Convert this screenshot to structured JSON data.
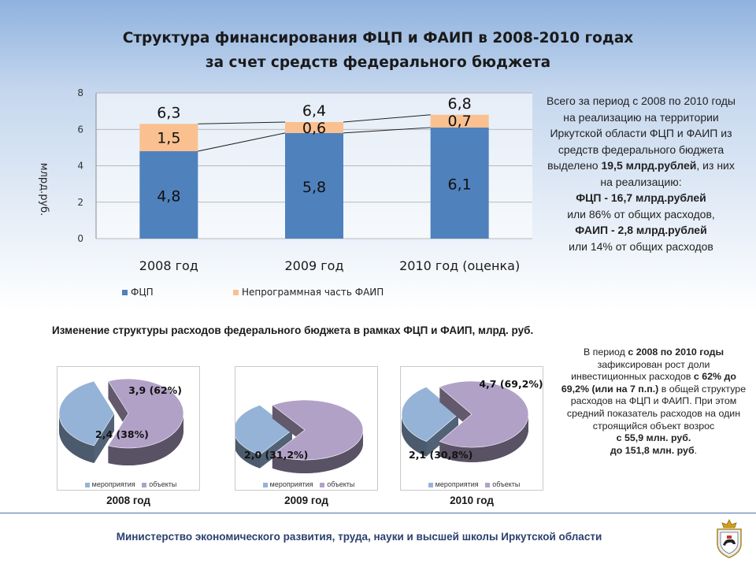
{
  "title": {
    "line1": "Структура финансирования ФЦП и ФАИП в 2008-2010 годах",
    "line2": "за счет средств федерального бюджета"
  },
  "chart_data": [
    {
      "type": "bar",
      "stacked": true,
      "categories": [
        "2008 год",
        "2009 год",
        "2010 год (оценка)"
      ],
      "series": [
        {
          "name": "ФЦП",
          "values": [
            4.8,
            5.8,
            6.1
          ],
          "labels": [
            "4,8",
            "5,8",
            "6,1"
          ]
        },
        {
          "name": "Непрограммная часть ФАИП",
          "values": [
            1.5,
            0.6,
            0.7
          ],
          "labels": [
            "1,5",
            "0,6",
            "0,7"
          ]
        }
      ],
      "totals": [
        6.3,
        6.4,
        6.8
      ],
      "total_labels": [
        "6,3",
        "6,4",
        "6,8"
      ],
      "ylabel": "млрд.руб.",
      "ylim": [
        0,
        8
      ],
      "yticks": [
        0,
        2,
        4,
        6,
        8
      ],
      "grid": true,
      "legend": "bottom-left",
      "colors": [
        "#4f81bd",
        "#fac090"
      ]
    },
    {
      "type": "pie",
      "year_label": "2008 год",
      "slices": [
        {
          "name": "мероприятия",
          "value": 2.4,
          "percent": 38,
          "label": "2,4 (38%)"
        },
        {
          "name": "объекты",
          "value": 3.9,
          "percent": 62,
          "label": "3,9 (62%)"
        }
      ],
      "legend": "bottom",
      "colors": [
        "#95b3d7",
        "#b2a1c7"
      ]
    },
    {
      "type": "pie",
      "year_label": "2009 год",
      "slices": [
        {
          "name": "мероприятия",
          "value": 2.0,
          "percent": 31.2,
          "label": "2,0 (31,2%)"
        },
        {
          "name": "объекты",
          "value": 4.4,
          "percent": 68.8,
          "label": ""
        }
      ],
      "legend": "bottom",
      "colors": [
        "#95b3d7",
        "#b2a1c7"
      ]
    },
    {
      "type": "pie",
      "year_label": "2010 год",
      "slices": [
        {
          "name": "мероприятия",
          "value": 2.1,
          "percent": 30.8,
          "label": "2,1 (30,8%)"
        },
        {
          "name": "объекты",
          "value": 4.7,
          "percent": 69.2,
          "label": "4,7 (69,2%)"
        }
      ],
      "legend": "bottom",
      "colors": [
        "#95b3d7",
        "#b2a1c7"
      ]
    }
  ],
  "side_text": {
    "intro": "Всего за период с 2008 по 2010 годы на реализацию на территории Иркутской области ФЦП и ФАИП из средств федерального бюджета выделено",
    "total_amount": "19,5 млрд.рублей",
    "intro_tail": ", из них на реализацию:",
    "fcp": "ФЦП - 16,7 млрд.рублей",
    "fcp_share": "или 86% от общих расходов,",
    "faip": "ФАИП - 2,8 млрд.рублей",
    "faip_share": "или 14% от общих расходов"
  },
  "section_heading": "Изменение структуры расходов федерального бюджета в рамках ФЦП и ФАИП, млрд. руб.",
  "right_note": {
    "p1": "В период",
    "p2": "с 2008 по 2010 годы",
    "p3": "зафиксирован рост доли инвестиционных расходов",
    "p4": "с 62% до 69,2% (или на 7 п.п.)",
    "p5": "в общей структуре расходов на ФЦП и ФАИП. При этом средний показатель расходов на один строящийся объект возрос",
    "p6": "с 55,9 млн. руб.",
    "p7": "до 151,8 млн. руб",
    "p8": "."
  },
  "footer": "Министерство экономического развития, труда, науки и высшей школы Иркутской области",
  "icons": {
    "emblem": "irkutsk-coat-of-arms-icon"
  }
}
